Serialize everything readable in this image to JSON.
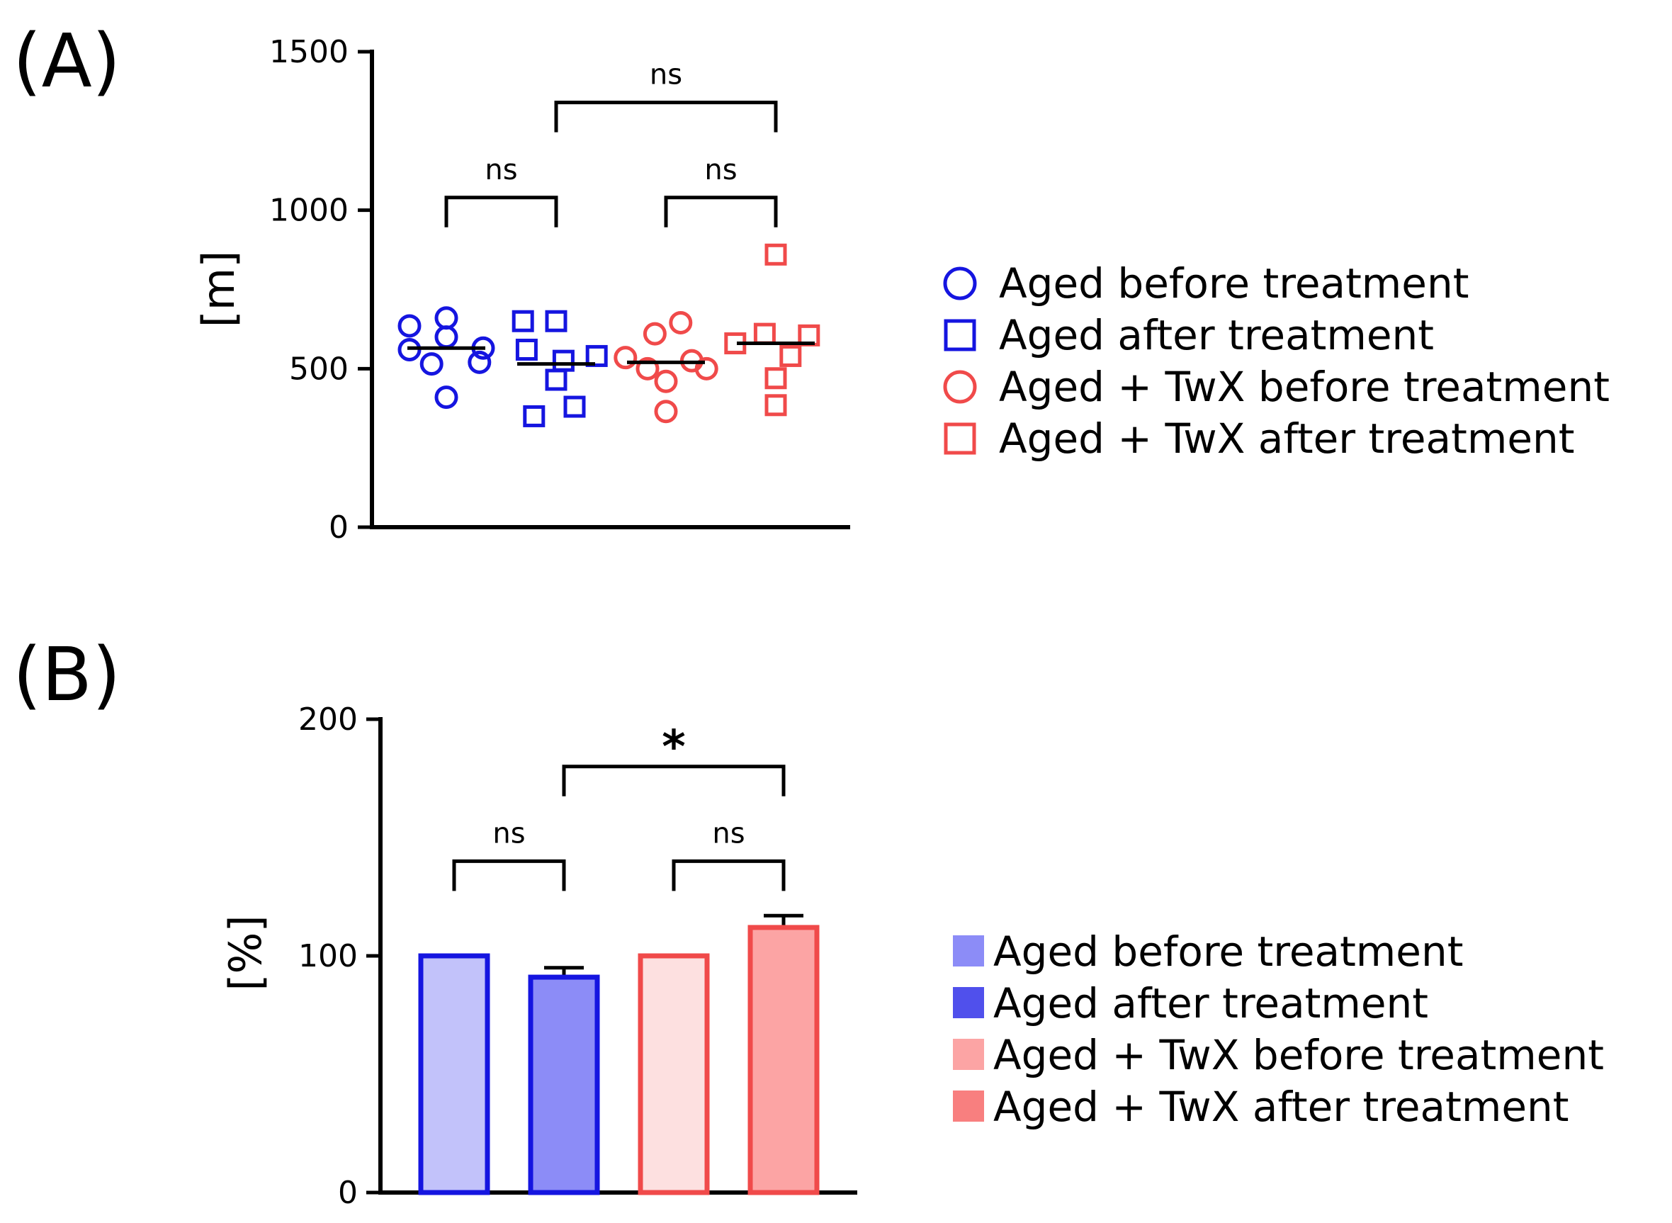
{
  "chart_data": [
    {
      "panel": "(A)",
      "type": "scatter",
      "ylabel": "[m]",
      "ylim": [
        0,
        1500
      ],
      "yticks": [
        "0",
        "500",
        "1000",
        "1500"
      ],
      "grid": false,
      "legend_position": "right",
      "groups": [
        {
          "name": "Aged before treatment",
          "marker": "circle",
          "color": "#1515e0",
          "points": [
            {
              "dx": -0.5,
              "y": 635
            },
            {
              "dx": 0.0,
              "y": 660
            },
            {
              "dx": -0.5,
              "y": 560
            },
            {
              "dx": 0.5,
              "y": 565
            },
            {
              "dx": 0.0,
              "y": 600
            },
            {
              "dx": 0.45,
              "y": 520
            },
            {
              "dx": -0.2,
              "y": 515
            },
            {
              "dx": 0.0,
              "y": 410
            }
          ],
          "mean": 565
        },
        {
          "name": "Aged after treatment",
          "marker": "square",
          "color": "#1515e0",
          "points": [
            {
              "dx": -0.45,
              "y": 650
            },
            {
              "dx": 0.0,
              "y": 650
            },
            {
              "dx": -0.4,
              "y": 560
            },
            {
              "dx": 0.55,
              "y": 540
            },
            {
              "dx": 0.1,
              "y": 525
            },
            {
              "dx": 0.0,
              "y": 465
            },
            {
              "dx": 0.25,
              "y": 380
            },
            {
              "dx": -0.3,
              "y": 350
            }
          ],
          "mean": 515
        },
        {
          "name": "Aged + TwX before treatment",
          "marker": "circle",
          "color": "#f04a4a",
          "points": [
            {
              "dx": 0.2,
              "y": 645
            },
            {
              "dx": -0.15,
              "y": 610
            },
            {
              "dx": -0.55,
              "y": 535
            },
            {
              "dx": 0.35,
              "y": 525
            },
            {
              "dx": -0.25,
              "y": 500
            },
            {
              "dx": 0.55,
              "y": 500
            },
            {
              "dx": 0.0,
              "y": 460
            },
            {
              "dx": 0.0,
              "y": 365
            }
          ],
          "mean": 520
        },
        {
          "name": "Aged + TwX after treatment",
          "marker": "square",
          "color": "#f04a4a",
          "points": [
            {
              "dx": 0.0,
              "y": 860
            },
            {
              "dx": -0.15,
              "y": 610
            },
            {
              "dx": 0.45,
              "y": 605
            },
            {
              "dx": -0.55,
              "y": 580
            },
            {
              "dx": 0.2,
              "y": 540
            },
            {
              "dx": 0.0,
              "y": 470
            },
            {
              "dx": 0.0,
              "y": 385
            }
          ],
          "mean": 580
        }
      ],
      "comparisons": [
        {
          "from": 0,
          "to": 1,
          "label": "ns",
          "y": 1040
        },
        {
          "from": 2,
          "to": 3,
          "label": "ns",
          "y": 1040
        },
        {
          "from": 1,
          "to": 3,
          "label": "ns",
          "y": 1340
        }
      ]
    },
    {
      "panel": "(B)",
      "type": "bar",
      "ylabel": "[%]",
      "ylim": [
        0,
        200
      ],
      "yticks": [
        "0",
        "100",
        "200"
      ],
      "grid": false,
      "legend_position": "right",
      "categories": [
        "Aged before treatment",
        "Aged after treatment",
        "Aged + TwX before treatment",
        "Aged + TwX after treatment"
      ],
      "values": [
        100,
        91,
        100,
        112
      ],
      "errors": [
        0,
        4,
        0,
        5
      ],
      "fill_colors": [
        "#c2c2fa",
        "#8c8cf7",
        "#fde0e0",
        "#fca4a4"
      ],
      "edge_colors": [
        "#1515e0",
        "#1515e0",
        "#f04a4a",
        "#f04a4a"
      ],
      "legend_colors": [
        "#8c8cf7",
        "#5050ec",
        "#fca4a4",
        "#f87f7f"
      ],
      "comparisons": [
        {
          "from": 0,
          "to": 1,
          "label": "ns",
          "y": 140
        },
        {
          "from": 2,
          "to": 3,
          "label": "ns",
          "y": 140
        },
        {
          "from": 1,
          "to": 3,
          "label": "*",
          "y": 180
        }
      ]
    }
  ]
}
